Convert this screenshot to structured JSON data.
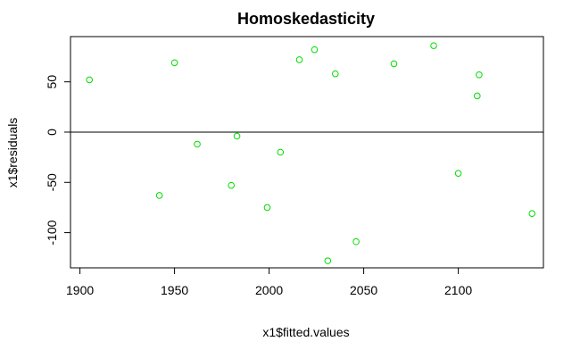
{
  "chart_data": {
    "type": "scatter",
    "title": "Homoskedasticity",
    "xlabel": "x1$fitted.values",
    "ylabel": "x1$residuals",
    "xlim": [
      1895,
      2145
    ],
    "ylim": [
      -135,
      95
    ],
    "x_ticks": [
      1900,
      1950,
      2000,
      2050,
      2100
    ],
    "y_ticks": [
      -100,
      -50,
      0,
      50
    ],
    "x_tick_labels": [
      "1900",
      "1950",
      "2000",
      "2050",
      "2100"
    ],
    "y_tick_labels": [
      "-100",
      "-50",
      "0",
      "50"
    ],
    "reference_line_y": 0,
    "point_color": "#00dd00",
    "grid": false,
    "points": [
      {
        "x": 1905,
        "y": 52
      },
      {
        "x": 1942,
        "y": -63
      },
      {
        "x": 1950,
        "y": 69
      },
      {
        "x": 1962,
        "y": -12
      },
      {
        "x": 1980,
        "y": -53
      },
      {
        "x": 1983,
        "y": -4
      },
      {
        "x": 1999,
        "y": -75
      },
      {
        "x": 2006,
        "y": -20
      },
      {
        "x": 2016,
        "y": 72
      },
      {
        "x": 2024,
        "y": 82
      },
      {
        "x": 2031,
        "y": -128
      },
      {
        "x": 2035,
        "y": 58
      },
      {
        "x": 2046,
        "y": -109
      },
      {
        "x": 2066,
        "y": 68
      },
      {
        "x": 2087,
        "y": 86
      },
      {
        "x": 2100,
        "y": -41
      },
      {
        "x": 2110,
        "y": 36
      },
      {
        "x": 2111,
        "y": 57
      },
      {
        "x": 2139,
        "y": -81
      }
    ]
  }
}
